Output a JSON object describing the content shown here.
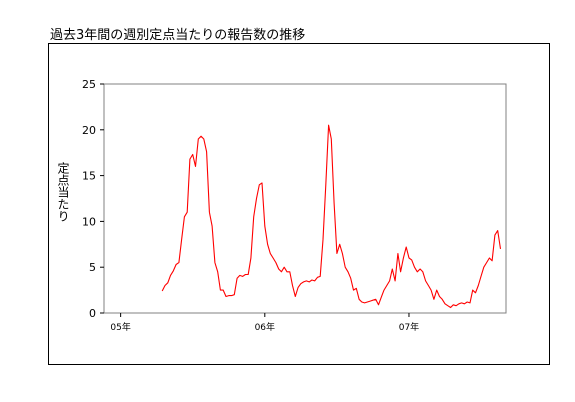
{
  "title": "過去3年間の週別定点当たりの報告数の推移",
  "chart_data": {
    "type": "line",
    "title": "過去3年間の週別定点当たりの報告数の推移",
    "ylabel": "定点当たり",
    "xlabel": "",
    "ylim": [
      0,
      25
    ],
    "yticks": [
      0,
      5,
      10,
      15,
      20,
      25
    ],
    "xticks": [
      {
        "week": 0,
        "label": "05年"
      },
      {
        "week": 52,
        "label": "06年"
      },
      {
        "week": 104,
        "label": "07年"
      }
    ],
    "xlim": [
      -6,
      139
    ],
    "color": "#ff0000",
    "grid": false,
    "series": [
      {
        "start_week": 15,
        "values": [
          2.4,
          3.0,
          3.3,
          4.1,
          4.6,
          5.3,
          5.5,
          8.0,
          10.5,
          11.0,
          16.8,
          17.3,
          16.0,
          19.0,
          19.3,
          19.0,
          17.6,
          11.0,
          9.5,
          5.5,
          4.5,
          2.5,
          2.5,
          1.8,
          1.9,
          1.9,
          2.0,
          3.8,
          4.1,
          4.0,
          4.2,
          4.2,
          6.0,
          10.5,
          12.5,
          14.0,
          14.2,
          9.5,
          7.5,
          6.5,
          6.0,
          5.5,
          4.8,
          4.5,
          5.0,
          4.5,
          4.5,
          3.0,
          1.8,
          2.8,
          3.2,
          3.4,
          3.5,
          3.4,
          3.6,
          3.5,
          3.9,
          4.0,
          8.0,
          14.0,
          20.5,
          19.0,
          12.0,
          6.5,
          7.5,
          6.5,
          5.0,
          4.5,
          3.8,
          2.5,
          2.7,
          1.5,
          1.2,
          1.1,
          1.2,
          1.3,
          1.4,
          1.5,
          0.9,
          1.7,
          2.5,
          3.0,
          3.5,
          4.8,
          3.5,
          6.5,
          4.5,
          6.0,
          7.2,
          6.0,
          5.8,
          5.0,
          4.5,
          4.8,
          4.5,
          3.5,
          3.0,
          2.5,
          1.5,
          2.5,
          1.8,
          1.5,
          1.0,
          0.8,
          0.6,
          0.9,
          0.8,
          1.0,
          1.1,
          1.0,
          1.2,
          1.1,
          2.5,
          2.2,
          3.0,
          4.0,
          5.0,
          5.5,
          6.0,
          5.7,
          8.5,
          9.0,
          7.0
        ]
      }
    ]
  }
}
